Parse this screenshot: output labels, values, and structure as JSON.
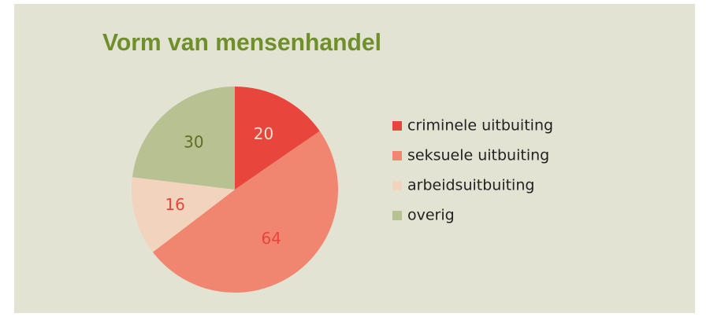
{
  "chart_data": {
    "type": "pie",
    "title": "Vorm van mensenhandel",
    "categories": [
      "criminele uitbuiting",
      "seksuele uitbuiting",
      "arbeidsuitbuiting",
      "overig"
    ],
    "values": [
      20,
      64,
      16,
      30
    ],
    "colors": [
      "#e8453c",
      "#f08570",
      "#f2d3bd",
      "#b8c191"
    ],
    "label_colors": [
      "#f6ded0",
      "#e8453c",
      "#e8453c",
      "#5e6e26"
    ],
    "legend": "right"
  }
}
